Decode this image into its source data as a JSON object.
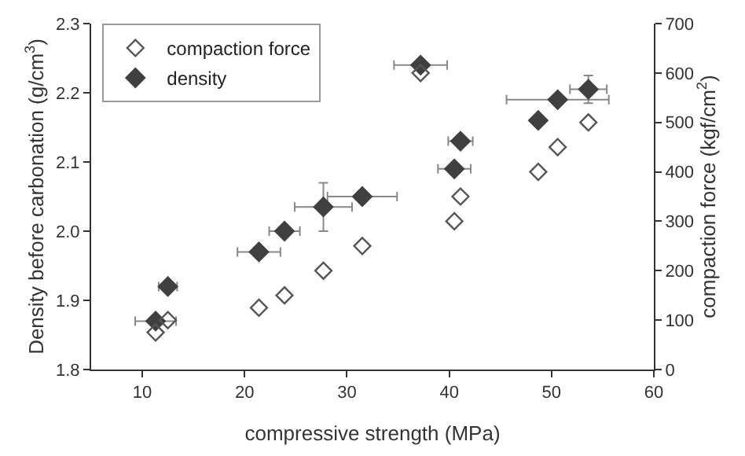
{
  "chart_data": {
    "type": "scatter",
    "xlabel": "compressive strength (MPa)",
    "ylabel": "Density before carbonation (g/cm$^{3}$)",
    "y2label": "compaction force (kgf/cm$^{2}$)",
    "xlim": [
      5,
      60
    ],
    "xticks": [
      10,
      20,
      30,
      40,
      50,
      60
    ],
    "ylim": [
      1.8,
      2.3
    ],
    "yticks": [
      1.8,
      1.9,
      {
        "value": 2.0,
        "label": "2.0"
      },
      2.1,
      2.2,
      2.3
    ],
    "y2lim": [
      0,
      700
    ],
    "y2ticks": [
      0,
      100,
      200,
      300,
      400,
      500,
      600,
      700
    ],
    "legend": "top left",
    "marker": "diamond",
    "series": [
      {
        "name": "compaction force",
        "color": "#555555",
        "axis": "y2",
        "x": [
          11.3,
          12.5,
          21.4,
          23.9,
          27.7,
          31.5,
          37.2,
          41.1,
          40.5,
          48.7,
          50.6,
          53.6
        ],
        "values": [
          75,
          100,
          125,
          150,
          200,
          250,
          600,
          350,
          300,
          400,
          450,
          500
        ]
      },
      {
        "name": "density",
        "color": "#404040",
        "axis": "y",
        "x": [
          11.3,
          12.5,
          21.4,
          23.9,
          27.7,
          31.5,
          37.2,
          41.1,
          40.5,
          48.7,
          50.6,
          53.6
        ],
        "values": [
          1.87,
          1.92,
          1.97,
          2.0,
          2.035,
          2.05,
          2.24,
          2.13,
          2.09,
          2.16,
          2.19,
          2.205
        ],
        "errors": [
          null,
          null,
          null,
          null,
          0.035,
          null,
          null,
          null,
          null,
          null,
          null,
          0.02
        ],
        "xerrors": [
          2.0,
          0.9,
          2.1,
          1.5,
          2.8,
          3.4,
          2.6,
          1.2,
          1.6,
          null,
          5.0,
          1.8
        ]
      }
    ]
  }
}
